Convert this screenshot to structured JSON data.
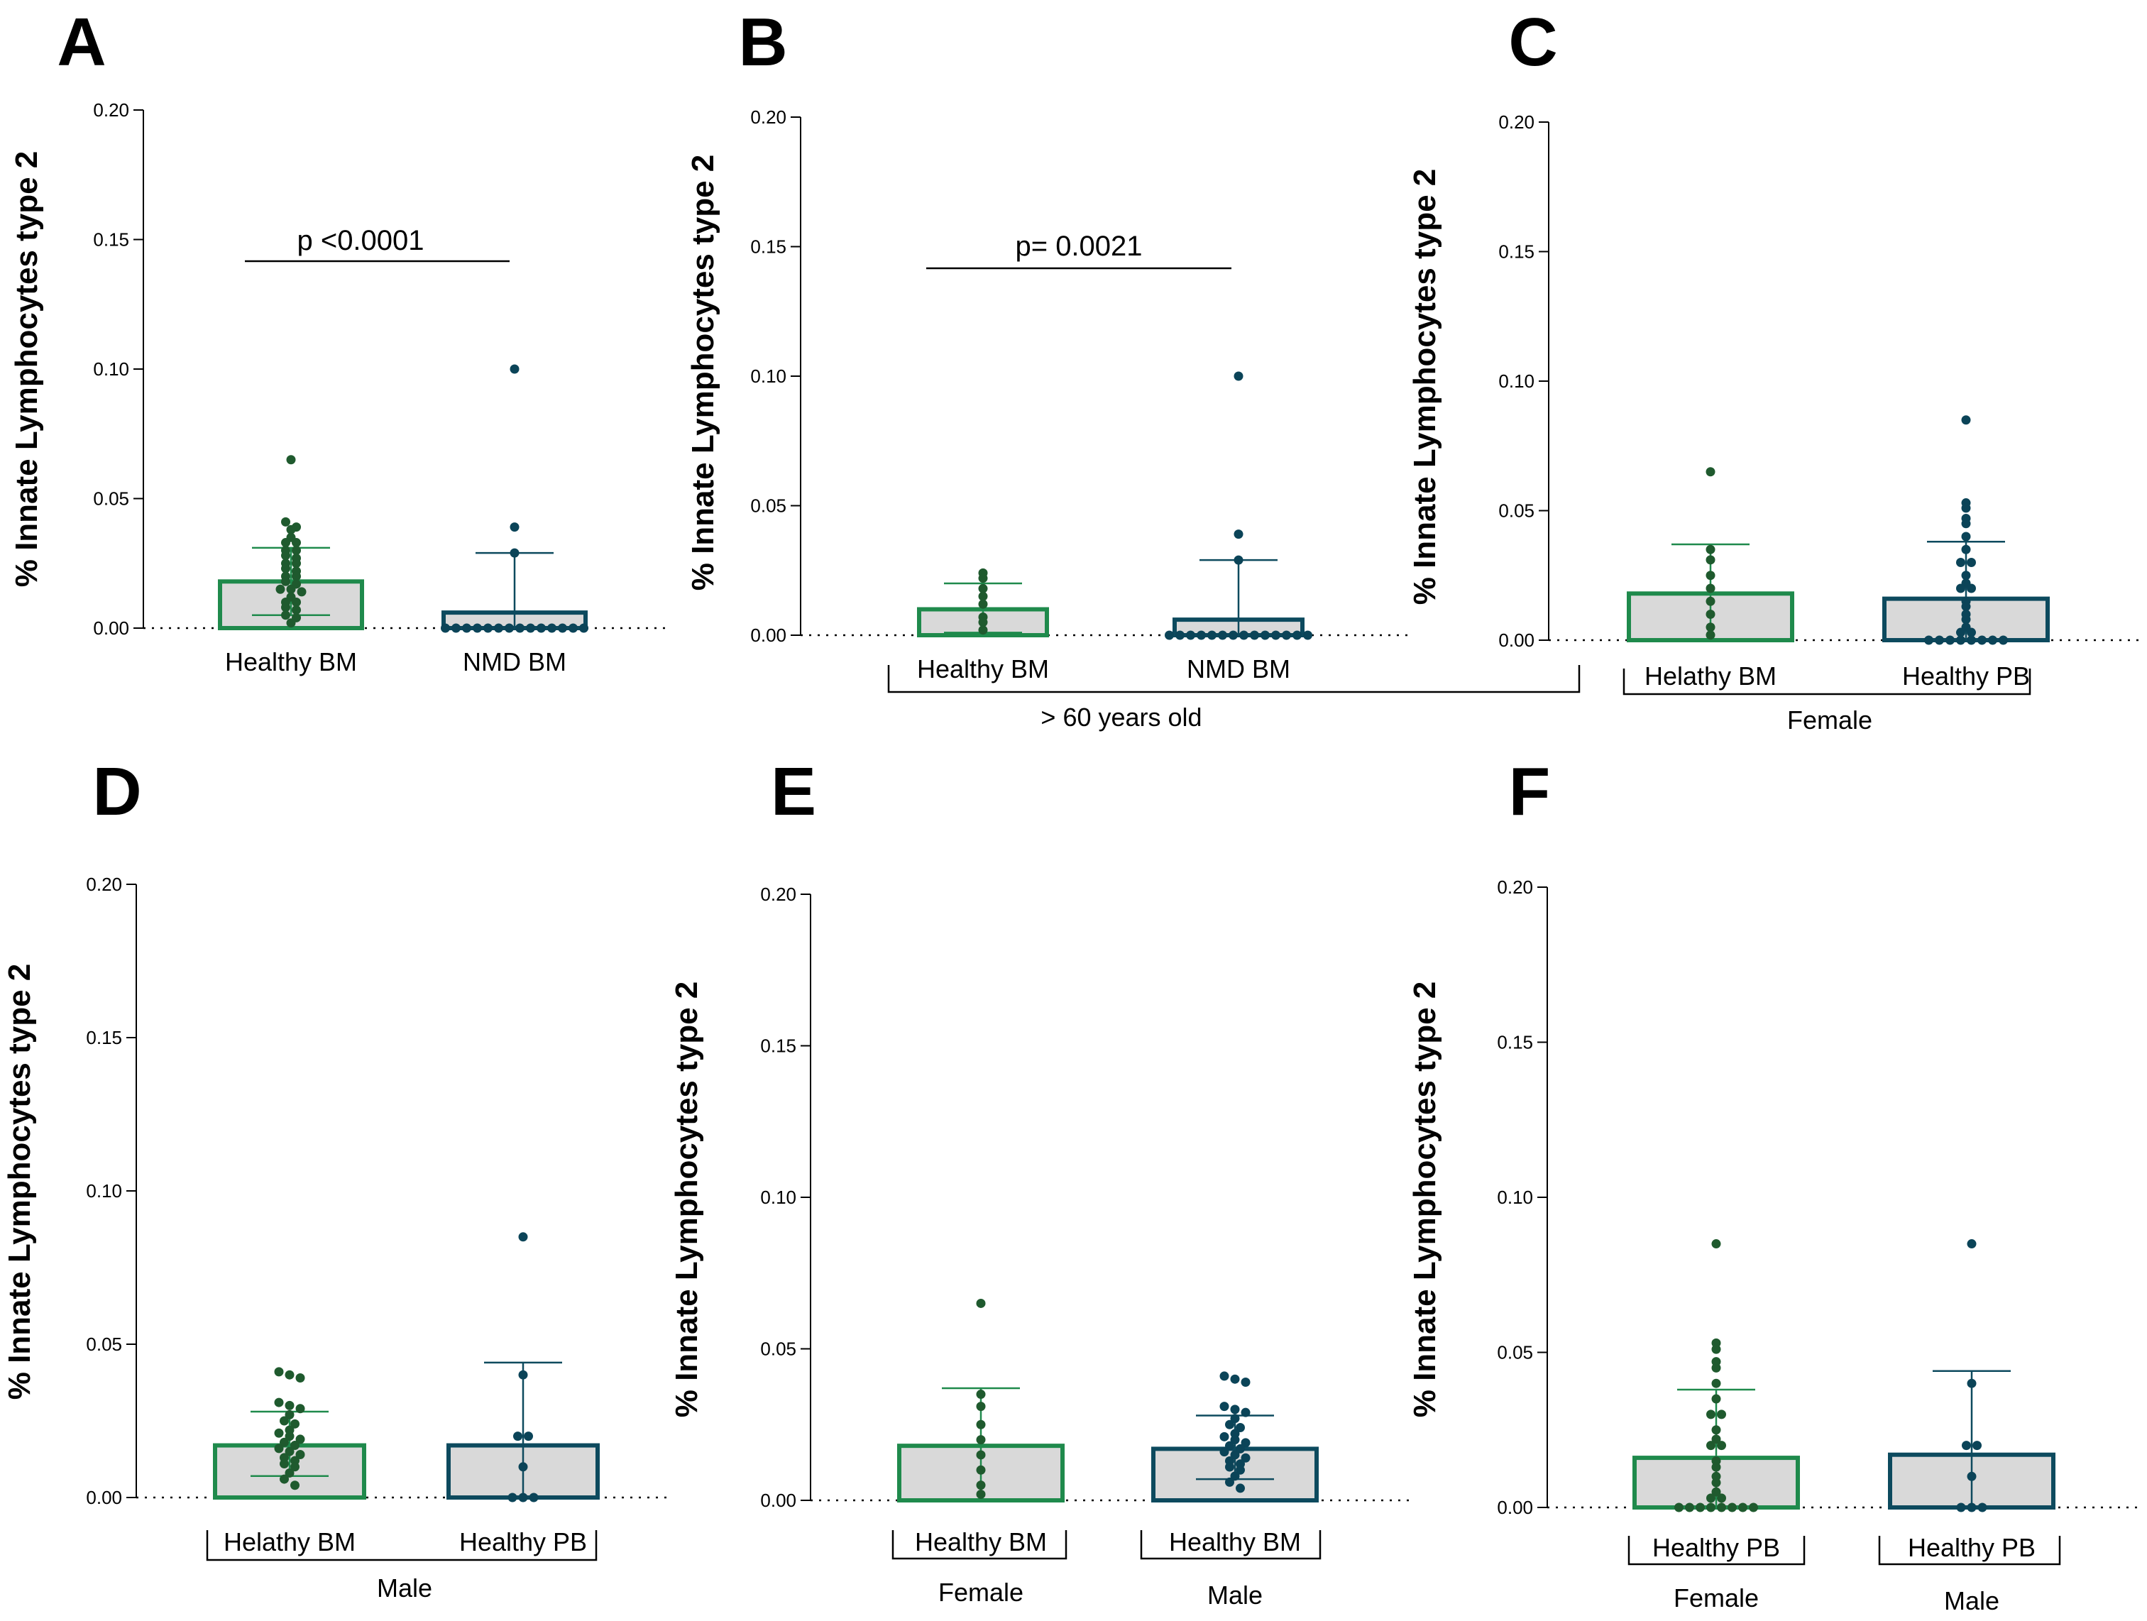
{
  "figure": {
    "colors": {
      "green": "#1f8a4c",
      "teal": "#0d4a5e",
      "bar_fill": "#d9d9d9",
      "green_dot": "#1f5a2e",
      "teal_dot": "#0b4458"
    }
  },
  "chart_data": [
    {
      "panel": "A",
      "type": "bar",
      "ylabel": "% Innate Lymphocytes type 2",
      "ylim": [
        0,
        0.2
      ],
      "yticks": [
        "0.00",
        "0.05",
        "0.10",
        "0.15",
        "0.20"
      ],
      "categories": [
        "Healthy BM",
        "NMD BM"
      ],
      "series": [
        {
          "name": "Healthy BM",
          "mean": 0.018,
          "sd_upper": 0.031,
          "sd_lower": 0.005,
          "color": "green",
          "points": [
            0.065,
            0.041,
            0.039,
            0.038,
            0.035,
            0.033,
            0.033,
            0.03,
            0.03,
            0.028,
            0.027,
            0.025,
            0.025,
            0.023,
            0.022,
            0.02,
            0.02,
            0.018,
            0.017,
            0.015,
            0.015,
            0.014,
            0.012,
            0.01,
            0.01,
            0.008,
            0.007,
            0.005,
            0.004,
            0.002
          ]
        },
        {
          "name": "NMD BM",
          "mean": 0.006,
          "sd_upper": 0.029,
          "sd_lower": 0.0,
          "color": "teal",
          "points": [
            0.1,
            0.039,
            0.029,
            0,
            0,
            0,
            0,
            0,
            0,
            0,
            0,
            0,
            0,
            0,
            0,
            0,
            0
          ]
        }
      ],
      "groups": [],
      "annotation": "p <0.0001"
    },
    {
      "panel": "B",
      "type": "bar",
      "ylabel": "% Innate Lymphocytes type 2",
      "ylim": [
        0,
        0.2
      ],
      "yticks": [
        "0.00",
        "0.05",
        "0.10",
        "0.15",
        "0.20"
      ],
      "categories": [
        "Healthy BM",
        "NMD BM"
      ],
      "series": [
        {
          "name": "Healthy BM",
          "mean": 0.01,
          "sd_upper": 0.02,
          "sd_lower": 0.001,
          "color": "green",
          "points": [
            0.024,
            0.022,
            0.018,
            0.015,
            0.012,
            0.007,
            0.005,
            0.002
          ]
        },
        {
          "name": "NMD BM",
          "mean": 0.006,
          "sd_upper": 0.029,
          "sd_lower": 0.0,
          "color": "teal",
          "points": [
            0.1,
            0.039,
            0.029,
            0,
            0,
            0,
            0,
            0,
            0,
            0,
            0,
            0,
            0,
            0,
            0,
            0,
            0
          ]
        }
      ],
      "groups": [
        {
          "label": "> 60 years old",
          "span": [
            0,
            1
          ]
        }
      ],
      "annotation": "p= 0.0021"
    },
    {
      "panel": "C",
      "type": "bar",
      "ylabel": "% Innate Lymphocytes type 2",
      "ylim": [
        0,
        0.2
      ],
      "yticks": [
        "0.00",
        "0.05",
        "0.10",
        "0.15",
        "0.20"
      ],
      "categories": [
        "Helathy BM",
        "Healthy PB"
      ],
      "series": [
        {
          "name": "Helathy BM",
          "mean": 0.018,
          "sd_upper": 0.037,
          "sd_lower": 0.0,
          "color": "green",
          "points": [
            0.065,
            0.035,
            0.031,
            0.025,
            0.02,
            0.015,
            0.01,
            0.005,
            0.002
          ]
        },
        {
          "name": "Healthy PB",
          "mean": 0.016,
          "sd_upper": 0.038,
          "sd_lower": 0.0,
          "color": "teal",
          "points": [
            0.085,
            0.053,
            0.051,
            0.047,
            0.045,
            0.04,
            0.035,
            0.03,
            0.03,
            0.025,
            0.022,
            0.02,
            0.02,
            0.015,
            0.013,
            0.01,
            0.008,
            0.005,
            0.003,
            0.003,
            0,
            0,
            0,
            0,
            0,
            0,
            0,
            0
          ]
        }
      ],
      "groups": [
        {
          "label": "Female",
          "span": [
            0,
            1
          ]
        }
      ],
      "annotation": ""
    },
    {
      "panel": "D",
      "type": "bar",
      "ylabel": "% Innate Lymphocytes type 2",
      "ylim": [
        0,
        0.2
      ],
      "yticks": [
        "0.00",
        "0.05",
        "0.10",
        "0.15",
        "0.20"
      ],
      "categories": [
        "Helathy BM",
        "Healthy PB"
      ],
      "series": [
        {
          "name": "Helathy BM",
          "mean": 0.017,
          "sd_upper": 0.028,
          "sd_lower": 0.007,
          "color": "green",
          "points": [
            0.041,
            0.04,
            0.039,
            0.031,
            0.03,
            0.029,
            0.027,
            0.025,
            0.024,
            0.022,
            0.021,
            0.02,
            0.019,
            0.018,
            0.017,
            0.016,
            0.015,
            0.014,
            0.013,
            0.012,
            0.011,
            0.01,
            0.008,
            0.006,
            0.004
          ]
        },
        {
          "name": "Healthy PB",
          "mean": 0.017,
          "sd_upper": 0.044,
          "sd_lower": 0.0,
          "color": "teal",
          "points": [
            0.085,
            0.04,
            0.02,
            0.02,
            0.01,
            0,
            0,
            0
          ]
        }
      ],
      "groups": [
        {
          "label": "Male",
          "span": [
            0,
            1
          ]
        }
      ],
      "annotation": ""
    },
    {
      "panel": "E",
      "type": "bar",
      "ylabel": "% Innate Lymphocytes type 2",
      "ylim": [
        0,
        0.2
      ],
      "yticks": [
        "0.00",
        "0.05",
        "0.10",
        "0.15",
        "0.20"
      ],
      "categories": [
        "Healthy BM",
        "Healthy BM"
      ],
      "series": [
        {
          "name": "Healthy BM",
          "mean": 0.018,
          "sd_upper": 0.037,
          "sd_lower": 0.0,
          "color": "green",
          "points": [
            0.065,
            0.035,
            0.031,
            0.025,
            0.02,
            0.015,
            0.01,
            0.005,
            0.002
          ]
        },
        {
          "name": "Healthy BM",
          "mean": 0.017,
          "sd_upper": 0.028,
          "sd_lower": 0.007,
          "color": "teal",
          "points": [
            0.041,
            0.04,
            0.039,
            0.031,
            0.03,
            0.029,
            0.027,
            0.025,
            0.024,
            0.022,
            0.021,
            0.02,
            0.019,
            0.018,
            0.017,
            0.016,
            0.015,
            0.014,
            0.013,
            0.012,
            0.011,
            0.01,
            0.008,
            0.006,
            0.004
          ]
        }
      ],
      "groups": [
        {
          "label": "Female",
          "span": [
            0,
            0
          ]
        },
        {
          "label": "Male",
          "span": [
            1,
            1
          ]
        }
      ],
      "annotation": ""
    },
    {
      "panel": "F",
      "type": "bar",
      "ylabel": "% Innate Lymphocytes type 2",
      "ylim": [
        0,
        0.2
      ],
      "yticks": [
        "0.00",
        "0.05",
        "0.10",
        "0.15",
        "0.20"
      ],
      "categories": [
        "Healthy PB",
        "Healthy PB"
      ],
      "series": [
        {
          "name": "Healthy PB",
          "mean": 0.016,
          "sd_upper": 0.038,
          "sd_lower": 0.0,
          "color": "green",
          "points": [
            0.085,
            0.053,
            0.051,
            0.047,
            0.045,
            0.04,
            0.035,
            0.03,
            0.03,
            0.025,
            0.022,
            0.02,
            0.02,
            0.015,
            0.013,
            0.01,
            0.008,
            0.005,
            0.003,
            0.003,
            0,
            0,
            0,
            0,
            0,
            0,
            0,
            0
          ]
        },
        {
          "name": "Healthy PB",
          "mean": 0.017,
          "sd_upper": 0.044,
          "sd_lower": 0.0,
          "color": "teal",
          "points": [
            0.085,
            0.04,
            0.02,
            0.02,
            0.01,
            0,
            0,
            0
          ]
        }
      ],
      "groups": [
        {
          "label": "Female",
          "span": [
            0,
            0
          ]
        },
        {
          "label": "Male",
          "span": [
            1,
            1
          ]
        }
      ],
      "annotation": ""
    }
  ]
}
